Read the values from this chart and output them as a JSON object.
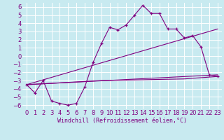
{
  "xlabel": "Windchill (Refroidissement éolien,°C)",
  "background_color": "#c8eaf0",
  "line_color": "#800080",
  "grid_color": "#ffffff",
  "xlim": [
    -0.5,
    23.5
  ],
  "ylim": [
    -6.5,
    6.5
  ],
  "xticks": [
    0,
    1,
    2,
    3,
    4,
    5,
    6,
    7,
    8,
    9,
    10,
    11,
    12,
    13,
    14,
    15,
    16,
    17,
    18,
    19,
    20,
    21,
    22,
    23
  ],
  "yticks": [
    -6,
    -5,
    -4,
    -3,
    -2,
    -1,
    0,
    1,
    2,
    3,
    4,
    5,
    6
  ],
  "series1_x": [
    0,
    1,
    2,
    3,
    4,
    5,
    6,
    7,
    8,
    9,
    10,
    11,
    12,
    13,
    14,
    15,
    16,
    17,
    18,
    19,
    20,
    21,
    22,
    23
  ],
  "series1_y": [
    -3.5,
    -4.5,
    -3.0,
    -5.5,
    -5.8,
    -6.0,
    -5.8,
    -3.8,
    -0.8,
    1.5,
    3.5,
    3.2,
    3.8,
    5.0,
    6.2,
    5.2,
    5.2,
    3.3,
    3.3,
    2.2,
    2.5,
    1.1,
    -2.3,
    -2.5
  ],
  "line1_x": [
    0,
    23
  ],
  "line1_y": [
    -3.5,
    3.3
  ],
  "line2_x": [
    0,
    23
  ],
  "line2_y": [
    -3.5,
    -2.3
  ],
  "line3_x": [
    0,
    9,
    19,
    23
  ],
  "line3_y": [
    -3.5,
    -3.0,
    -2.8,
    -2.5
  ],
  "font_size": 6
}
